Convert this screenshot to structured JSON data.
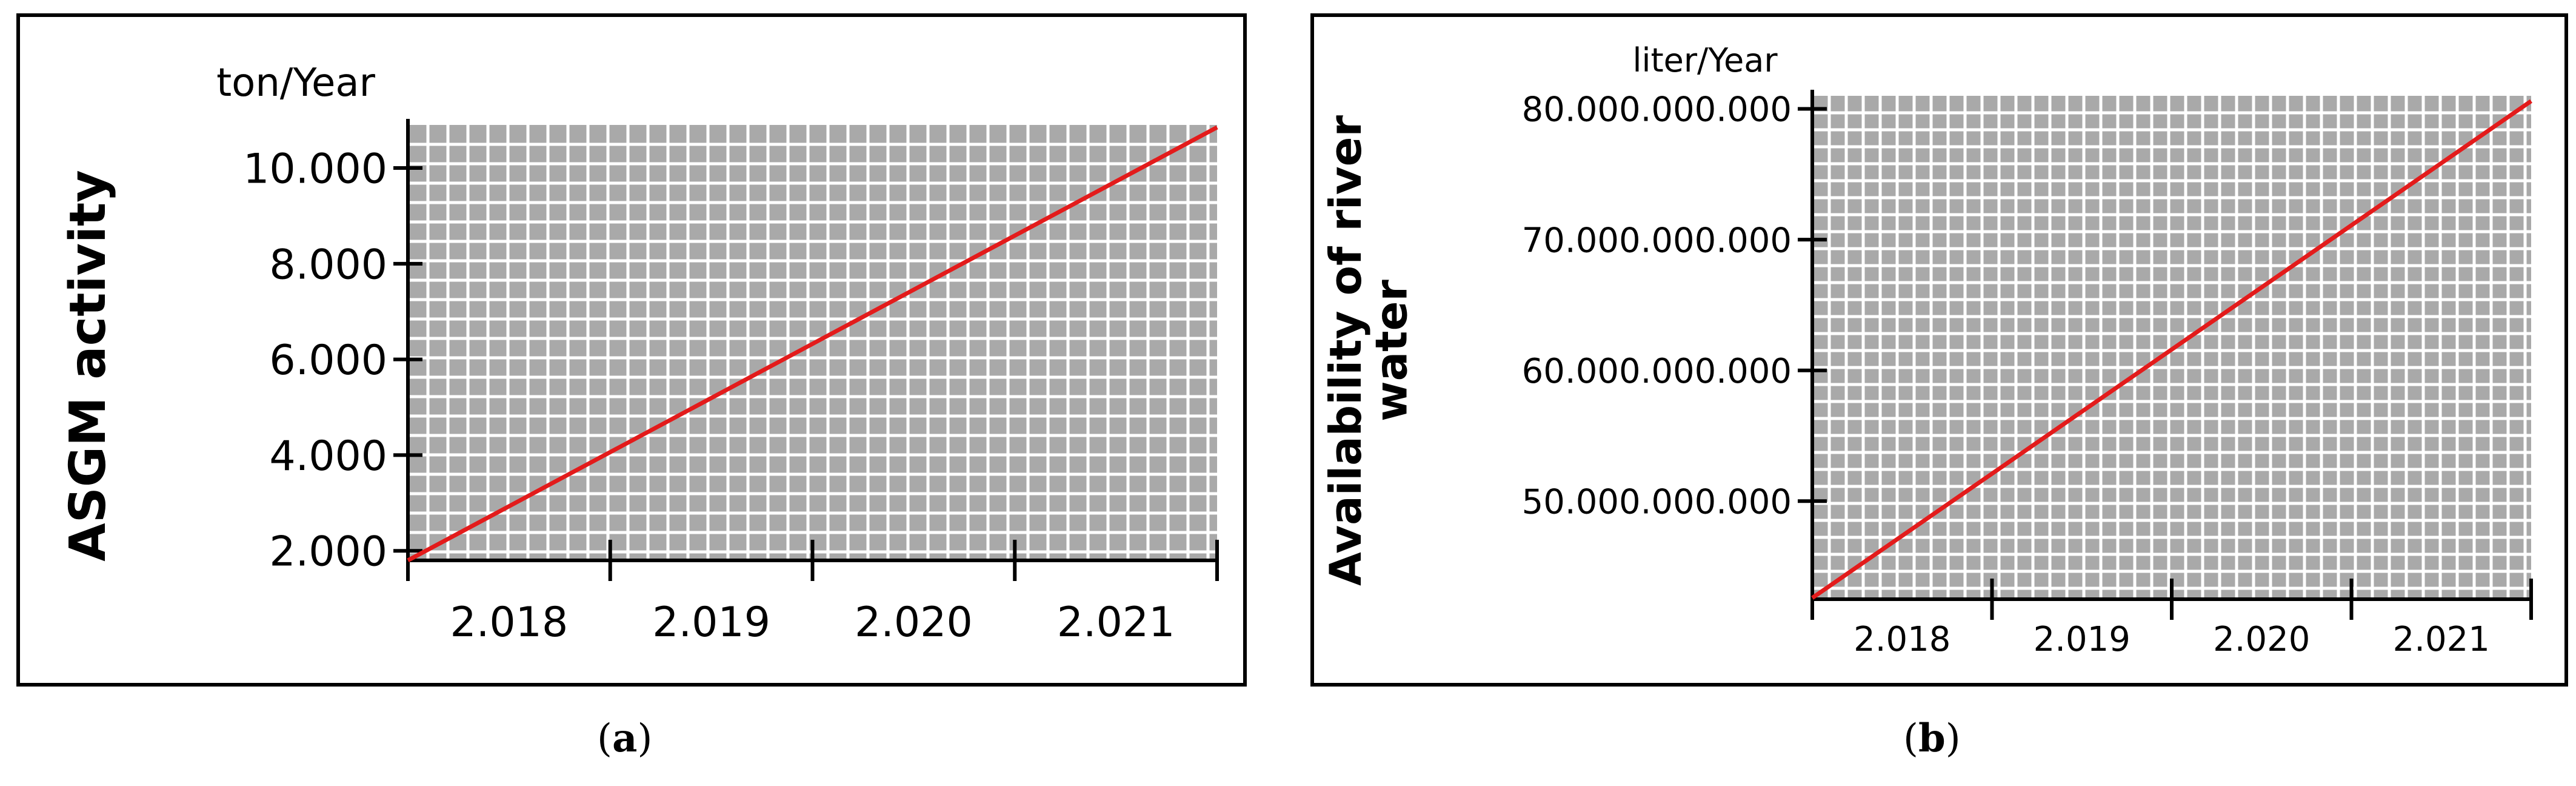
{
  "chart_data": [
    {
      "type": "line",
      "title": "",
      "unit_label": "ton/Year",
      "ylabel": "ASGM activity",
      "xlabel": "",
      "x_ticks": [
        "2.018",
        "2.019",
        "2.020",
        "2.021"
      ],
      "y_ticks": [
        "2.000",
        "4.000",
        "6.000",
        "8.000",
        "10.000"
      ],
      "xlim": [
        2017.5,
        2021.5
      ],
      "ylim": [
        1800,
        10900
      ],
      "grid": true,
      "series": [
        {
          "x": [
            2017.5,
            2021.5
          ],
          "y": [
            1800,
            10850
          ],
          "color": "#e31b1b"
        }
      ],
      "caption": "a"
    },
    {
      "type": "line",
      "title": "",
      "unit_label": "liter/Year",
      "ylabel": "Availability of river water",
      "xlabel": "",
      "x_ticks": [
        "2.018",
        "2.019",
        "2.020",
        "2.021"
      ],
      "y_ticks": [
        "50.000.000.000",
        "60.000.000.000",
        "70.000.000.000",
        "80.000.000.000"
      ],
      "xlim": [
        2017.5,
        2021.5
      ],
      "ylim": [
        42500000000,
        81000000000
      ],
      "grid": true,
      "series": [
        {
          "x": [
            2017.5,
            2021.5
          ],
          "y": [
            42600000000,
            80600000000
          ],
          "color": "#e31b1b"
        }
      ],
      "caption": "b"
    }
  ]
}
